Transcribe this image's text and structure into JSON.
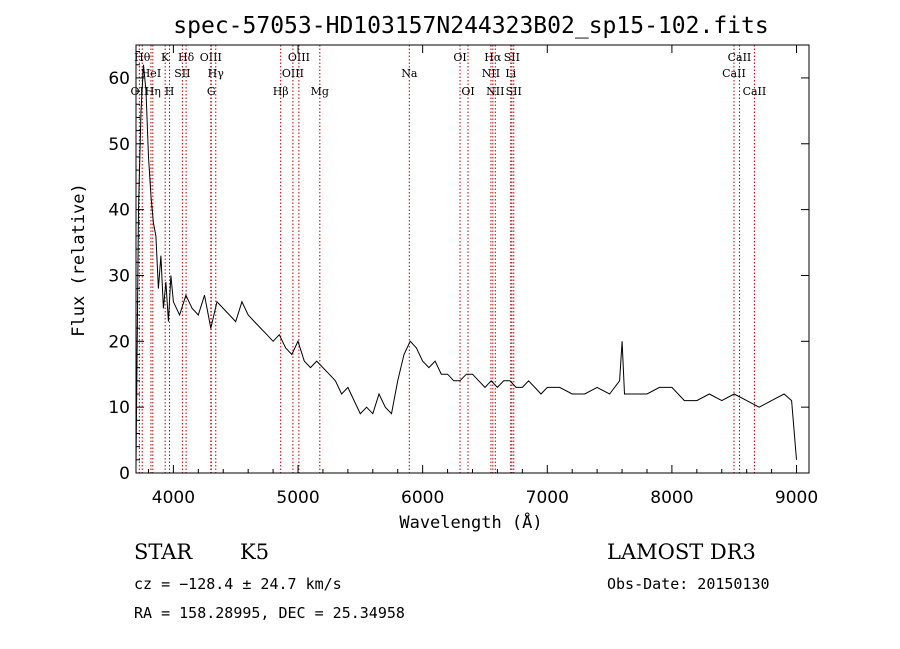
{
  "chart_data": {
    "type": "line",
    "title": "spec-57053-HD103157N244323B02_sp15-102.fits",
    "xlabel": "Wavelength (Å)",
    "ylabel": "Flux (relative)",
    "xlim": [
      3700,
      9100
    ],
    "ylim": [
      0,
      65
    ],
    "xticks": [
      4000,
      5000,
      6000,
      7000,
      8000,
      9000
    ],
    "yticks": [
      0,
      10,
      20,
      30,
      40,
      50,
      60
    ],
    "series": [
      {
        "name": "spectrum",
        "x": [
          3700,
          3720,
          3740,
          3760,
          3780,
          3800,
          3820,
          3840,
          3860,
          3880,
          3900,
          3920,
          3940,
          3960,
          3980,
          4000,
          4050,
          4100,
          4150,
          4200,
          4250,
          4300,
          4350,
          4400,
          4450,
          4500,
          4550,
          4600,
          4650,
          4700,
          4750,
          4800,
          4850,
          4900,
          4950,
          5000,
          5050,
          5100,
          5150,
          5200,
          5250,
          5300,
          5350,
          5400,
          5450,
          5500,
          5550,
          5600,
          5650,
          5700,
          5750,
          5800,
          5850,
          5900,
          5950,
          6000,
          6050,
          6100,
          6150,
          6200,
          6250,
          6300,
          6350,
          6400,
          6450,
          6500,
          6550,
          6600,
          6650,
          6700,
          6750,
          6800,
          6850,
          6900,
          6950,
          7000,
          7100,
          7200,
          7300,
          7400,
          7500,
          7580,
          7600,
          7620,
          7700,
          7800,
          7900,
          8000,
          8100,
          8200,
          8300,
          8400,
          8500,
          8600,
          8700,
          8800,
          8900,
          8960,
          9000
        ],
        "y": [
          1,
          40,
          55,
          62,
          58,
          48,
          42,
          38,
          36,
          28,
          33,
          25,
          29,
          23,
          30,
          26,
          24,
          27,
          25,
          24,
          27,
          22,
          26,
          25,
          24,
          23,
          26,
          24,
          23,
          22,
          21,
          20,
          21,
          19,
          18,
          20,
          17,
          16,
          17,
          16,
          15,
          14,
          12,
          13,
          11,
          9,
          10,
          9,
          12,
          10,
          9,
          14,
          18,
          20,
          19,
          17,
          16,
          17,
          15,
          15,
          14,
          14,
          15,
          15,
          14,
          13,
          14,
          13,
          14,
          14,
          13,
          13,
          14,
          13,
          12,
          13,
          13,
          12,
          12,
          13,
          12,
          14,
          20,
          12,
          12,
          12,
          13,
          13,
          11,
          11,
          12,
          11,
          12,
          11,
          10,
          11,
          12,
          11,
          2
        ]
      }
    ],
    "line_markers": [
      {
        "label": "OII",
        "x": 3727,
        "row": 3
      },
      {
        "label": "Hθ",
        "x": 3750,
        "row": 1
      },
      {
        "label": "HeI",
        "x": 3820,
        "row": 2
      },
      {
        "label": "Hη",
        "x": 3835,
        "row": 3
      },
      {
        "label": "K",
        "x": 3934,
        "row": 1
      },
      {
        "label": "H",
        "x": 3969,
        "row": 3
      },
      {
        "label": "SII",
        "x": 4072,
        "row": 2
      },
      {
        "label": "Hδ",
        "x": 4102,
        "row": 1
      },
      {
        "label": "OIII",
        "x": 4300,
        "row": 1
      },
      {
        "label": "Hγ",
        "x": 4340,
        "row": 2
      },
      {
        "label": "G",
        "x": 4304,
        "row": 3
      },
      {
        "label": "Hβ",
        "x": 4861,
        "row": 3
      },
      {
        "label": "OIII",
        "x": 4959,
        "row": 2
      },
      {
        "label": "OIII",
        "x": 5007,
        "row": 1
      },
      {
        "label": "Mg",
        "x": 5175,
        "row": 3
      },
      {
        "label": "Na",
        "x": 5893,
        "row": 2
      },
      {
        "label": "OI",
        "x": 6300,
        "row": 1
      },
      {
        "label": "OI",
        "x": 6364,
        "row": 3
      },
      {
        "label": "NII",
        "x": 6548,
        "row": 2
      },
      {
        "label": "Hα",
        "x": 6563,
        "row": 1
      },
      {
        "label": "NII",
        "x": 6583,
        "row": 3
      },
      {
        "label": "SII",
        "x": 6716,
        "row": 1
      },
      {
        "label": "Li",
        "x": 6707,
        "row": 2
      },
      {
        "label": "SII",
        "x": 6731,
        "row": 3
      },
      {
        "label": "CaII",
        "x": 8498,
        "row": 2
      },
      {
        "label": "CaII",
        "x": 8542,
        "row": 1
      },
      {
        "label": "CaII",
        "x": 8662,
        "row": 3
      }
    ]
  },
  "info": {
    "object_class": "STAR",
    "subclass": "K5",
    "survey": "LAMOST DR3",
    "redshift_line": "cz = −128.4 ± 24.7 km/s",
    "obs_date": "Obs-Date: 20150130",
    "coords": "RA = 158.28995, DEC =  25.34958"
  },
  "colors": {
    "spectrum": "#000000",
    "marker_line": "#c00000",
    "axes": "#000000"
  }
}
